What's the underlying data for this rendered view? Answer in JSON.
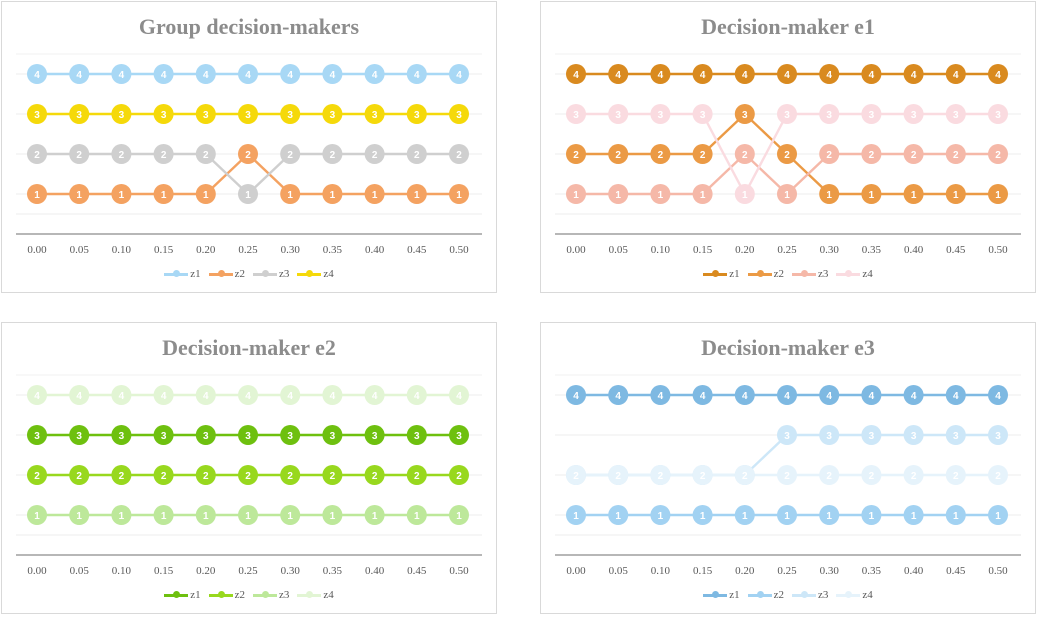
{
  "chart_data": [
    {
      "type": "line",
      "title": "Group decision-makers",
      "x": [
        "0.00",
        "0.05",
        "0.10",
        "0.15",
        "0.20",
        "0.25",
        "0.30",
        "0.35",
        "0.40",
        "0.45",
        "0.50"
      ],
      "ylim": [
        0,
        4
      ],
      "grid": true,
      "legend": "bottom",
      "series": [
        {
          "name": "z1",
          "color": "#a8d8f5",
          "values": [
            4,
            4,
            4,
            4,
            4,
            4,
            4,
            4,
            4,
            4,
            4
          ]
        },
        {
          "name": "z2",
          "color": "#f4a261",
          "values": [
            1,
            1,
            1,
            1,
            1,
            2,
            1,
            1,
            1,
            1,
            1
          ]
        },
        {
          "name": "z3",
          "color": "#cfcfcf",
          "values": [
            2,
            2,
            2,
            2,
            2,
            1,
            2,
            2,
            2,
            2,
            2
          ]
        },
        {
          "name": "z4",
          "color": "#f5d90a",
          "values": [
            3,
            3,
            3,
            3,
            3,
            3,
            3,
            3,
            3,
            3,
            3
          ]
        }
      ]
    },
    {
      "type": "line",
      "title": "Decision-maker e1",
      "x": [
        "0.00",
        "0.05",
        "0.10",
        "0.15",
        "0.20",
        "0.25",
        "0.30",
        "0.35",
        "0.40",
        "0.45",
        "0.50"
      ],
      "ylim": [
        0,
        4
      ],
      "grid": true,
      "legend": "bottom",
      "series": [
        {
          "name": "z1",
          "color": "#d98a1f",
          "values": [
            4,
            4,
            4,
            4,
            4,
            4,
            4,
            4,
            4,
            4,
            4
          ]
        },
        {
          "name": "z2",
          "color": "#eb9a45",
          "values": [
            2,
            2,
            2,
            2,
            3,
            2,
            1,
            1,
            1,
            1,
            1
          ]
        },
        {
          "name": "z3",
          "color": "#f5b8a8",
          "values": [
            1,
            1,
            1,
            1,
            2,
            1,
            2,
            2,
            2,
            2,
            2
          ]
        },
        {
          "name": "z4",
          "color": "#fadbe0",
          "values": [
            3,
            3,
            3,
            3,
            1,
            3,
            3,
            3,
            3,
            3,
            3
          ]
        }
      ]
    },
    {
      "type": "line",
      "title": "Decision-maker e2",
      "x": [
        "0.00",
        "0.05",
        "0.10",
        "0.15",
        "0.20",
        "0.25",
        "0.30",
        "0.35",
        "0.40",
        "0.45",
        "0.50"
      ],
      "ylim": [
        0,
        4
      ],
      "grid": true,
      "legend": "bottom",
      "series": [
        {
          "name": "z1",
          "color": "#6ec00f",
          "values": [
            3,
            3,
            3,
            3,
            3,
            3,
            3,
            3,
            3,
            3,
            3
          ]
        },
        {
          "name": "z2",
          "color": "#98d81e",
          "values": [
            2,
            2,
            2,
            2,
            2,
            2,
            2,
            2,
            2,
            2,
            2
          ]
        },
        {
          "name": "z3",
          "color": "#bde89a",
          "values": [
            1,
            1,
            1,
            1,
            1,
            1,
            1,
            1,
            1,
            1,
            1
          ]
        },
        {
          "name": "z4",
          "color": "#e2f5d4",
          "values": [
            4,
            4,
            4,
            4,
            4,
            4,
            4,
            4,
            4,
            4,
            4
          ]
        }
      ]
    },
    {
      "type": "line",
      "title": "Decision-maker e3",
      "x": [
        "0.00",
        "0.05",
        "0.10",
        "0.15",
        "0.20",
        "0.25",
        "0.30",
        "0.35",
        "0.40",
        "0.45",
        "0.50"
      ],
      "ylim": [
        0,
        4
      ],
      "grid": true,
      "legend": "bottom",
      "series": [
        {
          "name": "z1",
          "color": "#7eb9e2",
          "values": [
            4,
            4,
            4,
            4,
            4,
            4,
            4,
            4,
            4,
            4,
            4
          ]
        },
        {
          "name": "z2",
          "color": "#a2d2f2",
          "values": [
            1,
            1,
            1,
            1,
            1,
            1,
            1,
            1,
            1,
            1,
            1
          ]
        },
        {
          "name": "z3",
          "color": "#cde7f8",
          "values": [
            2,
            2,
            2,
            2,
            2,
            3,
            3,
            3,
            3,
            3,
            3
          ]
        },
        {
          "name": "z4",
          "color": "#e6f3fb",
          "values": [
            2,
            2,
            2,
            2,
            2,
            2,
            2,
            2,
            2,
            2,
            2
          ]
        }
      ]
    }
  ]
}
